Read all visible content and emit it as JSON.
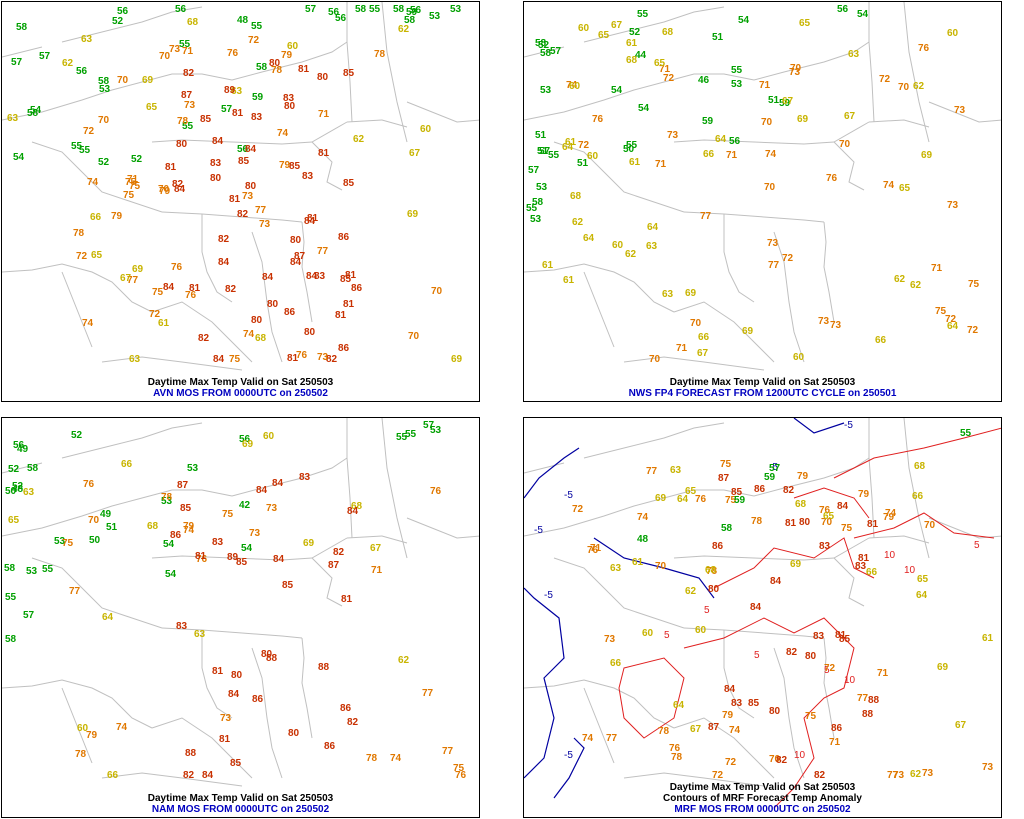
{
  "colors": {
    "cold": "#00a000",
    "cool": "#c8b400",
    "warm": "#e07800",
    "hot": "#c83000",
    "border": "#c0c0c0",
    "title": "#000000",
    "subtitle": "#0000c0",
    "neg_contour": "#0000a0",
    "pos_contour": "#e02020"
  },
  "panels": [
    {
      "id": "avn",
      "title": "Daytime Max Temp Valid on Sat 250503",
      "subtitle": "AVN MOS FROM 0000UTC on 250502",
      "values": [
        48,
        53,
        56,
        58,
        56,
        58,
        56,
        56,
        56,
        57,
        55,
        54,
        52,
        55,
        53,
        55,
        56,
        58,
        52,
        55,
        57,
        59,
        53,
        57,
        58,
        52,
        54,
        55,
        56,
        60,
        62,
        63,
        58,
        55,
        57,
        58,
        59,
        62,
        58,
        63,
        65,
        66,
        60,
        62,
        63,
        68,
        65,
        69,
        71,
        72,
        74,
        77,
        76,
        73,
        71,
        61,
        67,
        68,
        69,
        63,
        70,
        72,
        74,
        75,
        79,
        76,
        80,
        79,
        80,
        81,
        81,
        83,
        82,
        80,
        78,
        78,
        81,
        80,
        75,
        74,
        73,
        72,
        70,
        75,
        80,
        76,
        77,
        79,
        80,
        81,
        80,
        82,
        81,
        85,
        84,
        82,
        83,
        81,
        80,
        83,
        86,
        82,
        84,
        82,
        85,
        83,
        86,
        82,
        80,
        78,
        81,
        76,
        70,
        69,
        73,
        71,
        75,
        77,
        72,
        73,
        70,
        69,
        70,
        67,
        73,
        70,
        84,
        85,
        84,
        81,
        84,
        87,
        86,
        84,
        89,
        85,
        87,
        84,
        83,
        82,
        79,
        80,
        81,
        74,
        75,
        78,
        81,
        81,
        84,
        85,
        84,
        85,
        86,
        84
      ]
    },
    {
      "id": "nws",
      "title": "Daytime Max Temp Valid on Sat 250503",
      "subtitle": "NWS FP4 FORECAST FROM 1200UTC CYCLE on 250501",
      "values": [
        44,
        46,
        51,
        51,
        52,
        51,
        55,
        53,
        51,
        55,
        53,
        56,
        54,
        59,
        52,
        55,
        53,
        58,
        51,
        50,
        57,
        53,
        54,
        55,
        58,
        60,
        61,
        62,
        63,
        64,
        59,
        61,
        64,
        65,
        66,
        67,
        70,
        68,
        71,
        72,
        73,
        69,
        70,
        65,
        66,
        60,
        62,
        63,
        64,
        69,
        72,
        73,
        74,
        75,
        70,
        71,
        76,
        77,
        73,
        61,
        60,
        62,
        63,
        61,
        64,
        68,
        67,
        70,
        71,
        72,
        74,
        76,
        73,
        77,
        65,
        69,
        70,
        72,
        71,
        67,
        66,
        58,
        54,
        56,
        57,
        55,
        62,
        65,
        67,
        68,
        69,
        70,
        71,
        73,
        75,
        76,
        72,
        73,
        74,
        73,
        70,
        71,
        72,
        62,
        61,
        60,
        60,
        57,
        60,
        54,
        64
      ]
    },
    {
      "id": "nam",
      "title": "Daytime Max Temp Valid on Sat 250503",
      "subtitle": "NAM MOS FROM 0000UTC on 250502",
      "values": [
        42,
        49,
        52,
        53,
        48,
        54,
        53,
        55,
        58,
        57,
        56,
        55,
        52,
        50,
        53,
        54,
        55,
        53,
        58,
        56,
        57,
        55,
        52,
        51,
        50,
        49,
        53,
        54,
        60,
        63,
        64,
        60,
        62,
        58,
        66,
        67,
        68,
        69,
        73,
        70,
        71,
        76,
        77,
        78,
        79,
        80,
        81,
        82,
        83,
        84,
        85,
        86,
        80,
        81,
        82,
        84,
        78,
        76,
        75,
        74,
        77,
        79,
        80,
        83,
        84,
        85,
        86,
        88,
        87,
        89,
        85,
        84,
        83,
        82,
        81,
        74,
        73,
        76,
        75,
        74,
        69,
        66,
        63,
        73,
        75,
        76,
        77,
        78,
        68,
        65,
        84,
        86,
        87,
        88,
        88,
        85,
        86,
        84,
        81
      ]
    },
    {
      "id": "mrf",
      "title": "Daytime Max Temp Valid on Sat 250503",
      "title2": "Contours of MRF Forecast Temp Anomaly",
      "subtitle": "MRF MOS FROM 0000UTC on 250502",
      "contour_labels": [
        "-5",
        "-5",
        "-5",
        "-5",
        "-5",
        "-5",
        "5",
        "5",
        "5",
        "5",
        "10",
        "10",
        "10",
        "10",
        "5"
      ],
      "values": [
        48,
        55,
        57,
        58,
        59,
        60,
        61,
        62,
        63,
        64,
        65,
        66,
        67,
        68,
        69,
        70,
        71,
        72,
        73,
        74,
        75,
        76,
        77,
        78,
        79,
        80,
        81,
        82,
        83,
        84,
        85,
        86,
        87,
        88,
        70,
        72,
        73,
        74,
        75,
        76,
        77,
        78,
        79,
        80,
        81,
        82,
        83,
        84,
        85,
        86,
        70,
        71,
        72,
        73,
        74,
        75,
        76,
        77,
        78,
        79,
        80,
        81,
        82,
        83,
        84,
        64,
        65,
        66,
        67,
        68,
        69,
        70,
        71,
        72,
        73,
        74,
        75,
        76,
        77,
        78,
        79,
        80,
        81,
        82,
        83,
        84,
        85,
        86,
        87,
        88,
        69,
        68,
        66,
        65,
        64,
        63,
        62,
        61,
        60,
        59
      ]
    }
  ]
}
